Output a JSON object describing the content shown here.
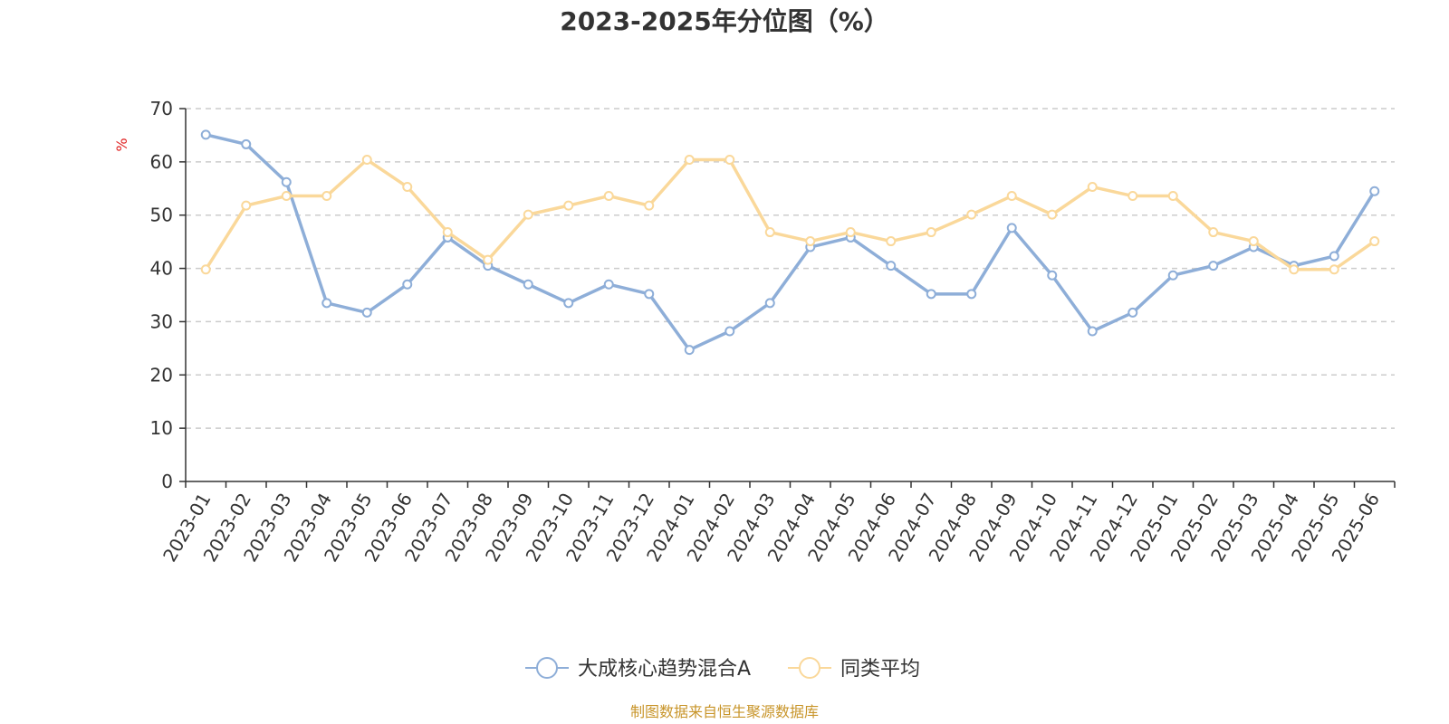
{
  "chart_data": {
    "type": "line",
    "title": "2023-2025年分位图（%）",
    "ylabel": "%",
    "ylim": [
      0,
      70
    ],
    "yticks": [
      0,
      10,
      20,
      30,
      40,
      50,
      60,
      70
    ],
    "grid": "horizontal-dashed",
    "legend_position": "bottom-center",
    "categories": [
      "2023-01",
      "2023-02",
      "2023-03",
      "2023-04",
      "2023-05",
      "2023-06",
      "2023-07",
      "2023-08",
      "2023-09",
      "2023-10",
      "2023-11",
      "2023-12",
      "2024-01",
      "2024-02",
      "2024-03",
      "2024-04",
      "2024-05",
      "2024-06",
      "2024-07",
      "2024-08",
      "2024-09",
      "2024-10",
      "2024-11",
      "2024-12",
      "2025-01",
      "2025-02",
      "2025-03",
      "2025-04",
      "2025-05",
      "2025-06"
    ],
    "series": [
      {
        "name": "大成核心趋势混合A",
        "color": "#8eaed8",
        "values": [
          65.1,
          63.3,
          56.2,
          33.5,
          31.7,
          37.0,
          45.8,
          40.5,
          37.0,
          33.5,
          37.0,
          35.2,
          24.7,
          28.2,
          33.5,
          44.0,
          45.8,
          40.5,
          35.2,
          35.2,
          47.6,
          38.7,
          28.2,
          31.7,
          38.7,
          40.5,
          44.0,
          40.5,
          42.3,
          54.5
        ]
      },
      {
        "name": "同类平均",
        "color": "#fad89a",
        "values": [
          39.8,
          51.8,
          53.6,
          53.6,
          60.4,
          55.3,
          46.8,
          41.6,
          50.1,
          51.8,
          53.6,
          51.8,
          60.4,
          60.4,
          46.8,
          45.1,
          46.8,
          45.1,
          46.8,
          50.1,
          53.6,
          50.1,
          55.3,
          53.6,
          53.6,
          46.8,
          45.1,
          39.8,
          39.8,
          45.1
        ]
      }
    ]
  },
  "source_text": "制图数据来自恒生聚源数据库"
}
